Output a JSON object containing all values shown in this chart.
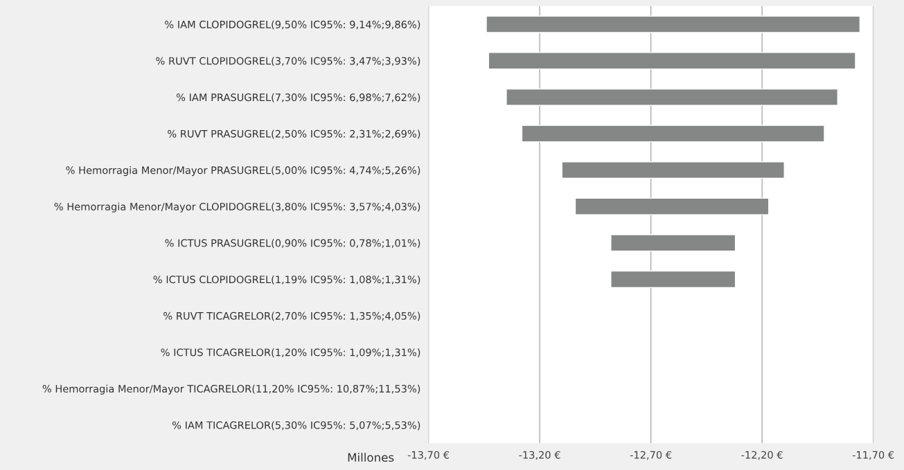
{
  "chart_data": {
    "type": "bar",
    "orientation": "horizontal",
    "xlabel": "Millones",
    "categories": [
      "% IAM CLOPIDOGREL(9,50% IC95%: 9,14%;9,86%)",
      "% RUVT CLOPIDOGREL(3,70% IC95%: 3,47%;3,93%)",
      "% IAM PRASUGREL(7,30% IC95%: 6,98%;7,62%)",
      "% RUVT PRASUGREL(2,50% IC95%: 2,31%;2,69%)",
      "% Hemorragia Menor/Mayor PRASUGREL(5,00% IC95%: 4,74%;5,26%)",
      "% Hemorragia Menor/Mayor CLOPIDOGREL(3,80% IC95%: 3,57%;4,03%)",
      "% ICTUS PRASUGREL(0,90% IC95%: 0,78%;1,01%)",
      "% ICTUS CLOPIDOGREL(1,19% IC95%: 1,08%;1,31%)",
      "% RUVT TICAGRELOR(2,70% IC95%: 1,35%;4,05%)",
      "% ICTUS TICAGRELOR(1,20% IC95%: 1,09%;1,31%)",
      "% Hemorragia Menor/Mayor TICAGRELOR(11,20% IC95%: 10,87%;11,53%)",
      "% IAM TICAGRELOR(5,30% IC95%: 5,07%;5,53%)"
    ],
    "base": [
      -13.44,
      -13.43,
      -13.35,
      -13.28,
      -13.1,
      -13.04,
      -12.88,
      -12.88,
      null,
      null,
      null,
      null
    ],
    "values": [
      1.68,
      1.65,
      1.49,
      1.36,
      1.0,
      0.87,
      0.56,
      0.56,
      null,
      null,
      null,
      null
    ],
    "color": "#858786",
    "xlim": [
      -13.7,
      -11.7
    ],
    "xticks": [
      {
        "value": -13.7,
        "label": "-13,70 €"
      },
      {
        "value": -13.2,
        "label": "-13,20 €"
      },
      {
        "value": -12.7,
        "label": "-12,70 €"
      },
      {
        "value": -12.2,
        "label": "-12,20 €"
      },
      {
        "value": -11.7,
        "label": "-11,70 €"
      }
    ],
    "grid": "x",
    "legend": false
  }
}
